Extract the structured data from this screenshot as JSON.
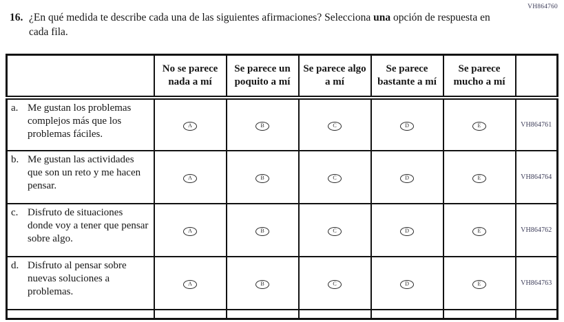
{
  "page_code": "VH864760",
  "question": {
    "number": "16.",
    "text_regular": "¿En qué medida te describe cada una de las siguientes afirmaciones? Selecciona ",
    "text_bold": "una",
    "text_after": " opción de respuesta en cada fila.",
    "full_text": "¿En qué medida te describe cada una de las siguientes afirmaciones? Selecciona una opción de respuesta en cada fila."
  },
  "table": {
    "columns": [
      "No se parece nada a mí",
      "Se parece un poquito a mí",
      "Se parece algo a mí",
      "Se parece bastante a mí",
      "Se parece mucho a mí"
    ],
    "options": [
      "A",
      "B",
      "C",
      "D",
      "E"
    ],
    "rows": [
      {
        "letter": "a.",
        "statement": "Me gustan los problemas complejos más que los problemas fáciles.",
        "code": "VH864761"
      },
      {
        "letter": "b.",
        "statement": "Me gustan las actividades que son un reto y me hacen pensar.",
        "code": "VH864764"
      },
      {
        "letter": "c.",
        "statement": "Disfruto de situaciones donde voy a tener que pensar sobre algo.",
        "code": "VH864762"
      },
      {
        "letter": "d.",
        "statement": "Disfruto al pensar sobre nuevas soluciones a problemas.",
        "code": "VH864763"
      }
    ]
  },
  "colors": {
    "border": "#111111",
    "text": "#161616",
    "code_text": "#3c3c58",
    "background": "#ffffff"
  }
}
